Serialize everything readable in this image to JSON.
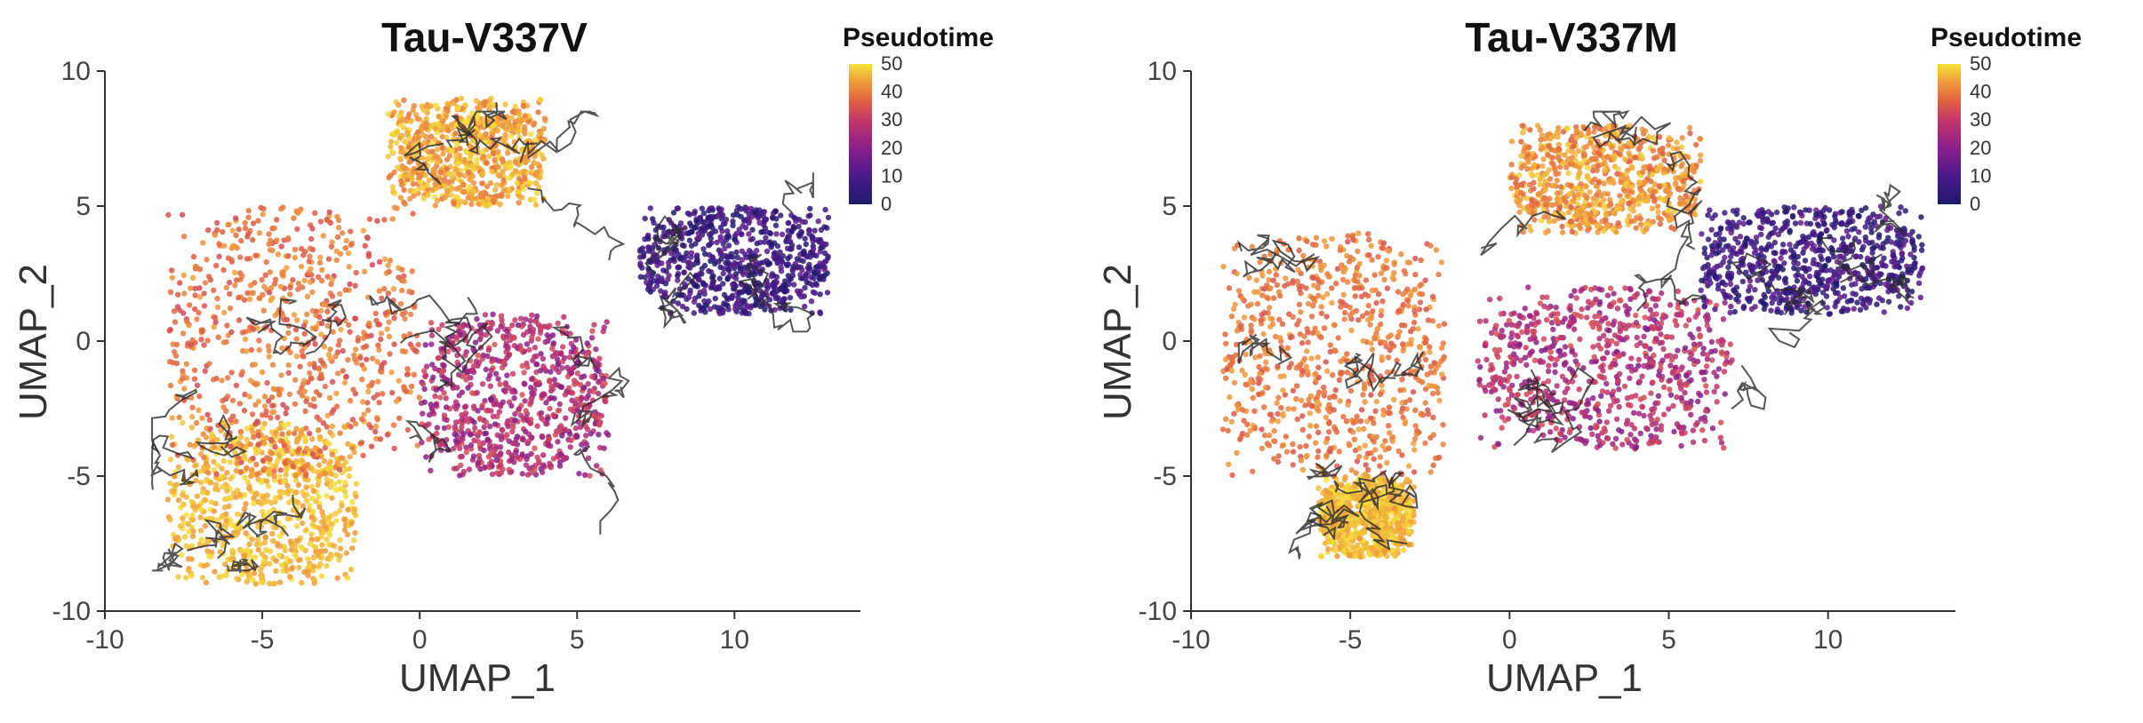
{
  "chart_data": [
    {
      "type": "scatter",
      "title": "Tau-V337V",
      "xlabel": "UMAP_1",
      "ylabel": "UMAP_2",
      "xlim": [
        -10,
        14
      ],
      "ylim": [
        -10,
        10
      ],
      "x_ticks": [
        "-10",
        "-5",
        "0",
        "5",
        "10"
      ],
      "y_ticks": [
        "10",
        "5",
        "0",
        "-5",
        "-10"
      ],
      "grid": false,
      "legend": {
        "title": "Pseudotime",
        "placement": "top-right",
        "ticks": [
          "50",
          "40",
          "30",
          "20",
          "10",
          "0"
        ],
        "range": [
          0,
          50
        ]
      },
      "colorscale": [
        "#1d1a6b",
        "#4a1a8a",
        "#8a1f8a",
        "#c4366a",
        "#e2663f",
        "#f0a03a",
        "#f5e33b"
      ],
      "trajectory_color": "#2b2b2b",
      "regions": [
        {
          "pseudotime_range": [
            40,
            50
          ],
          "x_range": [
            -8,
            -2
          ],
          "y_range": [
            -9,
            -3
          ]
        },
        {
          "pseudotime_range": [
            28,
            42
          ],
          "x_range": [
            -8,
            0
          ],
          "y_range": [
            -5,
            5
          ]
        },
        {
          "pseudotime_range": [
            35,
            50
          ],
          "x_range": [
            -1,
            4
          ],
          "y_range": [
            5,
            9
          ]
        },
        {
          "pseudotime_range": [
            15,
            30
          ],
          "x_range": [
            0,
            6
          ],
          "y_range": [
            -5,
            1
          ]
        },
        {
          "pseudotime_range": [
            0,
            12
          ],
          "x_range": [
            7,
            13
          ],
          "y_range": [
            1,
            5
          ]
        }
      ]
    },
    {
      "type": "scatter",
      "title": "Tau-V337M",
      "xlabel": "UMAP_1",
      "ylabel": "UMAP_2",
      "xlim": [
        -10,
        14
      ],
      "ylim": [
        -10,
        10
      ],
      "x_ticks": [
        "-10",
        "-5",
        "0",
        "5",
        "10"
      ],
      "y_ticks": [
        "10",
        "5",
        "0",
        "-5",
        "-10"
      ],
      "grid": false,
      "legend": {
        "title": "Pseudotime",
        "placement": "top-right",
        "ticks": [
          "50",
          "40",
          "30",
          "20",
          "10",
          "0"
        ],
        "range": [
          0,
          50
        ]
      },
      "colorscale": [
        "#1d1a6b",
        "#4a1a8a",
        "#8a1f8a",
        "#c4366a",
        "#e2663f",
        "#f0a03a",
        "#f5e33b"
      ],
      "trajectory_color": "#2b2b2b",
      "regions": [
        {
          "pseudotime_range": [
            40,
            50
          ],
          "x_range": [
            -6,
            -3
          ],
          "y_range": [
            -8,
            -5
          ]
        },
        {
          "pseudotime_range": [
            30,
            42
          ],
          "x_range": [
            -9,
            -2
          ],
          "y_range": [
            -5,
            4
          ]
        },
        {
          "pseudotime_range": [
            32,
            48
          ],
          "x_range": [
            0,
            6
          ],
          "y_range": [
            4,
            8
          ]
        },
        {
          "pseudotime_range": [
            15,
            30
          ],
          "x_range": [
            -1,
            7
          ],
          "y_range": [
            -4,
            2
          ]
        },
        {
          "pseudotime_range": [
            0,
            12
          ],
          "x_range": [
            6,
            13
          ],
          "y_range": [
            1,
            5
          ]
        }
      ]
    }
  ]
}
